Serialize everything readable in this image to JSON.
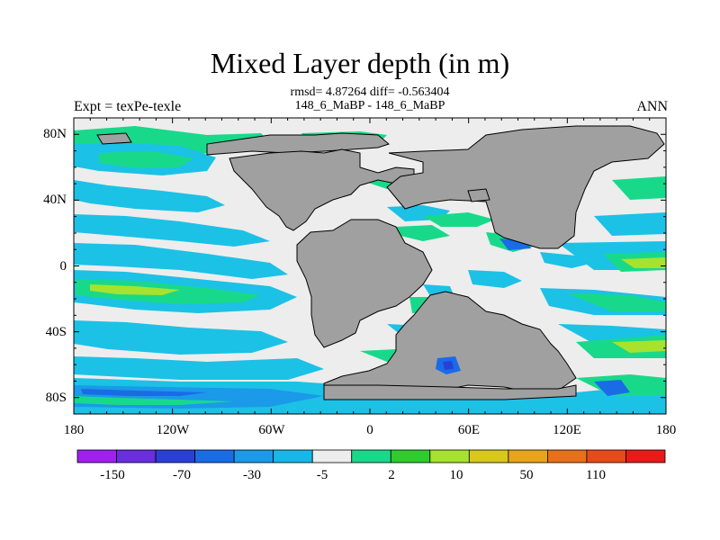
{
  "title": "Mixed Layer depth (in m)",
  "stats": {
    "rmsd_line": "rmsd= 4.87264 diff= -0.563404",
    "experiment_line": "148_6_MaBP - 148_6_MaBP"
  },
  "left_label": "Expt = texPe-texle",
  "right_label": "ANN",
  "axes": {
    "x_ticks": [
      "180",
      "120W",
      "60W",
      "0",
      "60E",
      "120E",
      "180"
    ],
    "y_ticks": [
      "80N",
      "40N",
      "0",
      "40S",
      "80S"
    ]
  },
  "colorbar": {
    "labels": [
      "-150",
      "-70",
      "-30",
      "-5",
      "2",
      "10",
      "50",
      "110"
    ],
    "colors": [
      "#a020f0",
      "#6a2de0",
      "#2a3fd8",
      "#1a6ce6",
      "#1a9ae8",
      "#17b8e8",
      "#ededed",
      "#18d98a",
      "#2ecc2e",
      "#a6e22e",
      "#d8c81a",
      "#e8a51a",
      "#e8701a",
      "#e84a1a",
      "#e81a1a"
    ]
  },
  "colors": {
    "land": "#a0a0a0",
    "ocean_near_zero": "#ededed",
    "cyan": "#1cc1e6",
    "light_blue": "#1a9ae8",
    "green": "#18d98a",
    "bright_green": "#2ecc2e",
    "yellow_green": "#a6e22e",
    "blue": "#1a6ce6",
    "dark_blue": "#2a3fd8"
  }
}
